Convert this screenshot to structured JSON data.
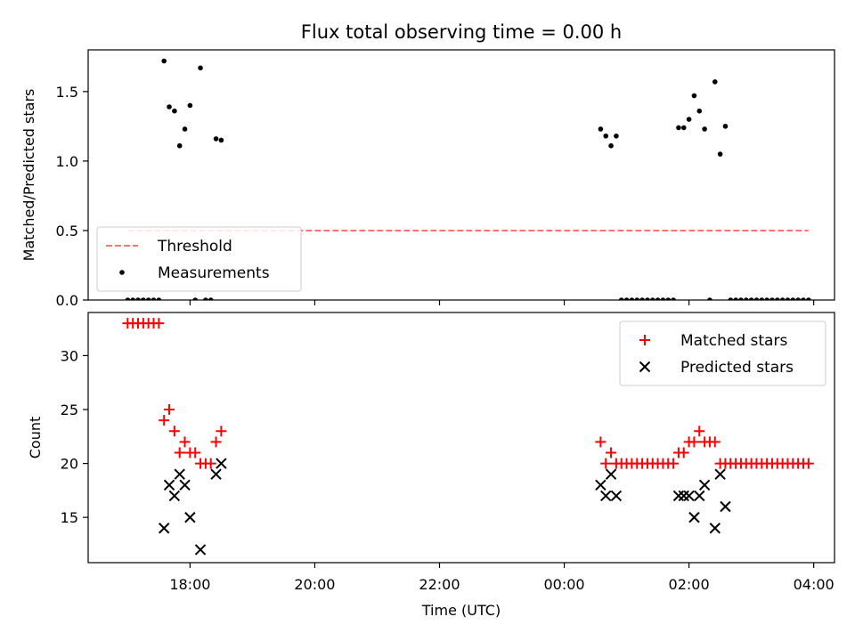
{
  "title": "Flux total observing time = 0.00 h",
  "chart_data": [
    {
      "type": "scatter",
      "ylabel": "Matched/Predicted stars",
      "ylim": [
        0,
        1.8
      ],
      "xlim": [
        "16:22",
        "04:20"
      ],
      "yticks": [
        "0.0",
        "0.5",
        "1.0",
        "1.5"
      ],
      "ytick_values": [
        0,
        0.5,
        1.0,
        1.5
      ],
      "threshold": {
        "name": "Threshold",
        "y": 0.5,
        "x_range": [
          "17:00",
          "03:55"
        ],
        "color": "#ff7373"
      },
      "legend_placement": "lower-left",
      "series": [
        {
          "name": "Measurements",
          "color": "#000000",
          "marker": "dot",
          "points": [
            [
              "17:00",
              0
            ],
            [
              "17:05",
              0
            ],
            [
              "17:10",
              0
            ],
            [
              "17:15",
              0
            ],
            [
              "17:20",
              0
            ],
            [
              "17:25",
              0
            ],
            [
              "17:30",
              0
            ],
            [
              "17:35",
              1.72
            ],
            [
              "17:40",
              1.39
            ],
            [
              "17:45",
              1.36
            ],
            [
              "17:50",
              1.11
            ],
            [
              "17:55",
              1.23
            ],
            [
              "18:00",
              1.4
            ],
            [
              "18:05",
              0
            ],
            [
              "18:10",
              1.67
            ],
            [
              "18:15",
              0
            ],
            [
              "18:20",
              0
            ],
            [
              "18:25",
              1.16
            ],
            [
              "18:30",
              1.15
            ],
            [
              "00:35",
              1.23
            ],
            [
              "00:40",
              1.18
            ],
            [
              "00:45",
              1.11
            ],
            [
              "00:50",
              1.18
            ],
            [
              "00:55",
              0
            ],
            [
              "01:00",
              0
            ],
            [
              "01:05",
              0
            ],
            [
              "01:10",
              0
            ],
            [
              "01:15",
              0
            ],
            [
              "01:20",
              0
            ],
            [
              "01:25",
              0
            ],
            [
              "01:30",
              0
            ],
            [
              "01:35",
              0
            ],
            [
              "01:40",
              0
            ],
            [
              "01:45",
              0
            ],
            [
              "01:50",
              1.24
            ],
            [
              "01:55",
              1.24
            ],
            [
              "02:00",
              1.3
            ],
            [
              "02:05",
              1.47
            ],
            [
              "02:10",
              1.36
            ],
            [
              "02:15",
              1.23
            ],
            [
              "02:20",
              0
            ],
            [
              "02:25",
              1.57
            ],
            [
              "02:30",
              1.05
            ],
            [
              "02:35",
              1.25
            ],
            [
              "02:40",
              0
            ],
            [
              "02:45",
              0
            ],
            [
              "02:50",
              0
            ],
            [
              "02:55",
              0
            ],
            [
              "03:00",
              0
            ],
            [
              "03:05",
              0
            ],
            [
              "03:10",
              0
            ],
            [
              "03:15",
              0
            ],
            [
              "03:20",
              0
            ],
            [
              "03:25",
              0
            ],
            [
              "03:30",
              0
            ],
            [
              "03:35",
              0
            ],
            [
              "03:40",
              0
            ],
            [
              "03:45",
              0
            ],
            [
              "03:50",
              0
            ],
            [
              "03:55",
              0
            ]
          ]
        }
      ]
    },
    {
      "type": "scatter",
      "ylabel": "Count",
      "xlabel": "Time (UTC)",
      "ylim": [
        10.8,
        34
      ],
      "xlim": [
        "16:22",
        "04:20"
      ],
      "yticks": [
        "15",
        "20",
        "25",
        "30"
      ],
      "ytick_values": [
        15,
        20,
        25,
        30
      ],
      "xticks": [
        "18:00",
        "20:00",
        "22:00",
        "00:00",
        "02:00",
        "04:00"
      ],
      "legend_placement": "upper-right",
      "series": [
        {
          "name": "Matched stars",
          "color": "#ff0000",
          "marker": "plus",
          "points": [
            [
              "17:00",
              33
            ],
            [
              "17:05",
              33
            ],
            [
              "17:10",
              33
            ],
            [
              "17:15",
              33
            ],
            [
              "17:20",
              33
            ],
            [
              "17:25",
              33
            ],
            [
              "17:30",
              33
            ],
            [
              "17:35",
              24
            ],
            [
              "17:40",
              25
            ],
            [
              "17:45",
              23
            ],
            [
              "17:50",
              21
            ],
            [
              "17:55",
              22
            ],
            [
              "18:00",
              21
            ],
            [
              "18:05",
              21
            ],
            [
              "18:10",
              20
            ],
            [
              "18:15",
              20
            ],
            [
              "18:20",
              20
            ],
            [
              "18:25",
              22
            ],
            [
              "18:30",
              23
            ],
            [
              "00:35",
              22
            ],
            [
              "00:40",
              20
            ],
            [
              "00:45",
              21
            ],
            [
              "00:50",
              20
            ],
            [
              "00:55",
              20
            ],
            [
              "01:00",
              20
            ],
            [
              "01:05",
              20
            ],
            [
              "01:10",
              20
            ],
            [
              "01:15",
              20
            ],
            [
              "01:20",
              20
            ],
            [
              "01:25",
              20
            ],
            [
              "01:30",
              20
            ],
            [
              "01:35",
              20
            ],
            [
              "01:40",
              20
            ],
            [
              "01:45",
              20
            ],
            [
              "01:50",
              21
            ],
            [
              "01:55",
              21
            ],
            [
              "02:00",
              22
            ],
            [
              "02:05",
              22
            ],
            [
              "02:10",
              23
            ],
            [
              "02:15",
              22
            ],
            [
              "02:20",
              22
            ],
            [
              "02:25",
              22
            ],
            [
              "02:30",
              20
            ],
            [
              "02:35",
              20
            ],
            [
              "02:40",
              20
            ],
            [
              "02:45",
              20
            ],
            [
              "02:50",
              20
            ],
            [
              "02:55",
              20
            ],
            [
              "03:00",
              20
            ],
            [
              "03:05",
              20
            ],
            [
              "03:10",
              20
            ],
            [
              "03:15",
              20
            ],
            [
              "03:20",
              20
            ],
            [
              "03:25",
              20
            ],
            [
              "03:30",
              20
            ],
            [
              "03:35",
              20
            ],
            [
              "03:40",
              20
            ],
            [
              "03:45",
              20
            ],
            [
              "03:50",
              20
            ],
            [
              "03:55",
              20
            ]
          ]
        },
        {
          "name": "Predicted stars",
          "color": "#000000",
          "marker": "x",
          "points": [
            [
              "17:35",
              14
            ],
            [
              "17:40",
              18
            ],
            [
              "17:45",
              17
            ],
            [
              "17:50",
              19
            ],
            [
              "17:55",
              18
            ],
            [
              "18:00",
              15
            ],
            [
              "18:10",
              12
            ],
            [
              "18:25",
              19
            ],
            [
              "18:30",
              20
            ],
            [
              "00:35",
              18
            ],
            [
              "00:40",
              17
            ],
            [
              "00:45",
              19
            ],
            [
              "00:50",
              17
            ],
            [
              "01:50",
              17
            ],
            [
              "01:55",
              17
            ],
            [
              "02:00",
              17
            ],
            [
              "02:05",
              15
            ],
            [
              "02:10",
              17
            ],
            [
              "02:15",
              18
            ],
            [
              "02:25",
              14
            ],
            [
              "02:30",
              19
            ],
            [
              "02:35",
              16
            ]
          ]
        }
      ]
    }
  ]
}
